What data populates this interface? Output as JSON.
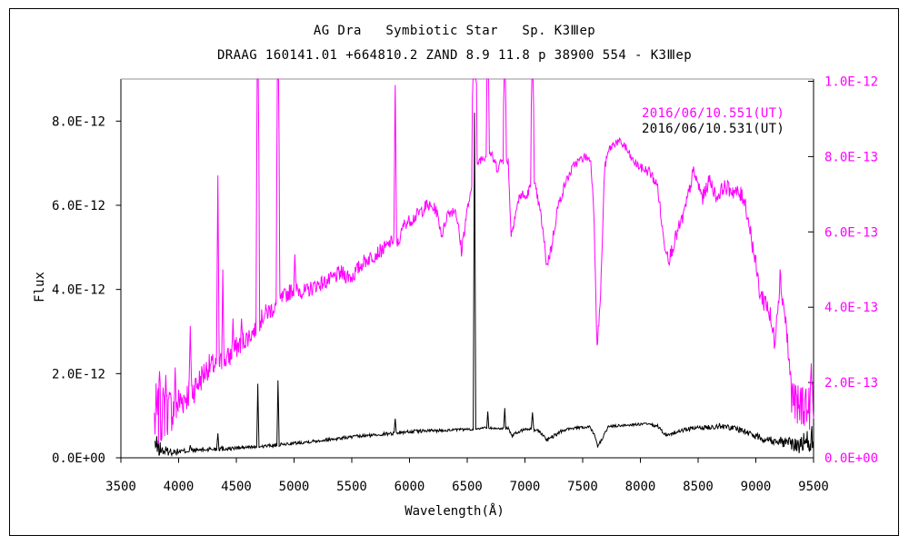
{
  "figure": {
    "title_line1": "AG Dra   Symbiotic Star   Sp. K3Ⅲep",
    "title_line2": "DRAAG 160141.01 +664810.2 ZAND 8.9 11.8 p 38900 554 - K3Ⅲep"
  },
  "chart_data": {
    "type": "line",
    "title": "AG Dra Symbiotic Star Sp. K3IIIep",
    "subtitle": "DRAAG 160141.01 +664810.2 ZAND 8.9 11.8 p 38900 554 - K3IIIep",
    "xlabel": "Wavelength(Å)",
    "ylabel_left": "Flux",
    "grid": false,
    "legend_position": "upper right inside",
    "x_axis": {
      "min": 3500,
      "max": 9500,
      "tick_values": [
        3500,
        4000,
        4500,
        5000,
        5500,
        6000,
        6500,
        7000,
        7500,
        8000,
        8500,
        9000,
        9500
      ],
      "tick_labels": [
        "3500",
        "4000",
        "4500",
        "5000",
        "5500",
        "6000",
        "6500",
        "7000",
        "7500",
        "8000",
        "8500",
        "9000",
        "9500"
      ]
    },
    "left_axis": {
      "color": "#000000",
      "tick_values": [
        0,
        2e-12,
        4e-12,
        6e-12,
        8e-12
      ],
      "tick_labels": [
        "0.0E+00",
        "2.0E-12",
        "4.0E-12",
        "6.0E-12",
        "8.0E-12"
      ],
      "max_plotted": 9e-12
    },
    "right_axis": {
      "color": "#ff00ff",
      "tick_values": [
        0,
        2e-13,
        4e-13,
        6e-13,
        8e-13,
        1e-12
      ],
      "tick_labels": [
        "0.0E+00",
        "2.0E-13",
        "4.0E-13",
        "6.0E-13",
        "8.0E-13",
        "1.0E-12"
      ],
      "max_plotted": 1.007e-12
    },
    "legend": [
      {
        "label": "2016/06/10.551(UT)",
        "color": "#ff00ff"
      },
      {
        "label": "2016/06/10.531(UT)",
        "color": "#000000"
      }
    ],
    "series": [
      {
        "name": "2016/06/10.531(UT)",
        "axis": "left",
        "color": "#000000",
        "unit": 1e-12,
        "seed": 13,
        "continuum": [
          [
            3795,
            0.3,
            0.28
          ],
          [
            3860,
            0.17,
            0.14
          ],
          [
            3950,
            0.14,
            0.08
          ],
          [
            4050,
            0.16,
            0.06
          ],
          [
            4150,
            0.18,
            0.06
          ],
          [
            4250,
            0.2,
            0.06
          ],
          [
            4350,
            0.22,
            0.07
          ],
          [
            4450,
            0.22,
            0.05
          ],
          [
            4550,
            0.24,
            0.04
          ],
          [
            4650,
            0.26,
            0.04
          ],
          [
            4750,
            0.28,
            0.04
          ],
          [
            4850,
            0.3,
            0.04
          ],
          [
            4950,
            0.33,
            0.04
          ],
          [
            5050,
            0.36,
            0.04
          ],
          [
            5150,
            0.39,
            0.04
          ],
          [
            5250,
            0.42,
            0.04
          ],
          [
            5350,
            0.45,
            0.04
          ],
          [
            5450,
            0.48,
            0.04
          ],
          [
            5550,
            0.51,
            0.04
          ],
          [
            5650,
            0.53,
            0.04
          ],
          [
            5750,
            0.56,
            0.04
          ],
          [
            5850,
            0.58,
            0.04
          ],
          [
            5950,
            0.61,
            0.04
          ],
          [
            6050,
            0.63,
            0.04
          ],
          [
            6150,
            0.64,
            0.04
          ],
          [
            6250,
            0.65,
            0.04
          ],
          [
            6350,
            0.66,
            0.03
          ],
          [
            6450,
            0.67,
            0.03
          ],
          [
            6550,
            0.68,
            0.03
          ],
          [
            6620,
            0.71,
            0.03
          ],
          [
            6700,
            0.71,
            0.03
          ],
          [
            6760,
            0.69,
            0.03
          ],
          [
            6855,
            0.71,
            0.03
          ],
          [
            6890,
            0.51,
            0.04
          ],
          [
            6930,
            0.6,
            0.04
          ],
          [
            7000,
            0.68,
            0.03
          ],
          [
            7060,
            0.68,
            0.03
          ],
          [
            7120,
            0.64,
            0.04
          ],
          [
            7190,
            0.43,
            0.04
          ],
          [
            7250,
            0.51,
            0.05
          ],
          [
            7320,
            0.64,
            0.04
          ],
          [
            7400,
            0.7,
            0.03
          ],
          [
            7500,
            0.72,
            0.03
          ],
          [
            7560,
            0.73,
            0.03
          ],
          [
            7600,
            0.55,
            0.04
          ],
          [
            7630,
            0.28,
            0.04
          ],
          [
            7670,
            0.45,
            0.04
          ],
          [
            7720,
            0.74,
            0.03
          ],
          [
            7850,
            0.77,
            0.03
          ],
          [
            7950,
            0.79,
            0.03
          ],
          [
            8050,
            0.8,
            0.04
          ],
          [
            8150,
            0.75,
            0.04
          ],
          [
            8220,
            0.54,
            0.04
          ],
          [
            8300,
            0.59,
            0.04
          ],
          [
            8400,
            0.68,
            0.05
          ],
          [
            8500,
            0.71,
            0.05
          ],
          [
            8600,
            0.73,
            0.06
          ],
          [
            8700,
            0.76,
            0.07
          ],
          [
            8800,
            0.71,
            0.07
          ],
          [
            8900,
            0.64,
            0.07
          ],
          [
            9000,
            0.51,
            0.08
          ],
          [
            9100,
            0.44,
            0.1
          ],
          [
            9200,
            0.4,
            0.12
          ],
          [
            9300,
            0.34,
            0.15
          ],
          [
            9380,
            0.3,
            0.2
          ],
          [
            9440,
            0.38,
            0.3
          ],
          [
            9480,
            0.5,
            0.4
          ],
          [
            9500,
            0.3,
            0.3
          ]
        ],
        "lines": [
          [
            4101,
            0.3,
            10
          ],
          [
            4340,
            0.58,
            10
          ],
          [
            4686,
            1.76,
            10
          ],
          [
            4861,
            1.84,
            10
          ],
          [
            5876,
            0.93,
            10
          ],
          [
            6563,
            8.2,
            11
          ],
          [
            6678,
            1.1,
            9
          ],
          [
            6825,
            1.18,
            9
          ],
          [
            7065,
            1.08,
            11
          ]
        ]
      },
      {
        "name": "2016/06/10.551(UT)",
        "axis": "right",
        "color": "#ff00ff",
        "unit": 1e-13,
        "seed": 7,
        "continuum": [
          [
            3790,
            1.0,
            1.0
          ],
          [
            3850,
            1.2,
            0.8
          ],
          [
            3950,
            1.3,
            0.6
          ],
          [
            4050,
            1.6,
            0.45
          ],
          [
            4150,
            1.9,
            0.4
          ],
          [
            4250,
            2.4,
            0.35
          ],
          [
            4350,
            2.5,
            0.3
          ],
          [
            4450,
            2.7,
            0.3
          ],
          [
            4520,
            3.0,
            0.3
          ],
          [
            4600,
            3.2,
            0.25
          ],
          [
            4660,
            3.4,
            0.25
          ],
          [
            4740,
            3.8,
            0.25
          ],
          [
            4830,
            4.0,
            0.25
          ],
          [
            4920,
            4.3,
            0.22
          ],
          [
            5000,
            4.5,
            0.22
          ],
          [
            5100,
            4.4,
            0.22
          ],
          [
            5200,
            4.6,
            0.2
          ],
          [
            5300,
            4.7,
            0.2
          ],
          [
            5400,
            4.9,
            0.22
          ],
          [
            5500,
            4.8,
            0.22
          ],
          [
            5600,
            5.2,
            0.2
          ],
          [
            5700,
            5.4,
            0.2
          ],
          [
            5800,
            5.6,
            0.18
          ],
          [
            5860,
            5.8,
            0.15
          ],
          [
            5905,
            5.7,
            0.15
          ],
          [
            5950,
            6.2,
            0.15
          ],
          [
            6050,
            6.4,
            0.18
          ],
          [
            6150,
            6.7,
            0.18
          ],
          [
            6230,
            6.6,
            0.15
          ],
          [
            6280,
            5.9,
            0.12
          ],
          [
            6330,
            6.5,
            0.15
          ],
          [
            6400,
            6.6,
            0.15
          ],
          [
            6450,
            5.5,
            0.2
          ],
          [
            6500,
            6.6,
            0.15
          ],
          [
            6530,
            7.0,
            0.1
          ],
          [
            6600,
            7.9,
            0.12
          ],
          [
            6650,
            8.0,
            0.12
          ],
          [
            6700,
            8.1,
            0.12
          ],
          [
            6760,
            7.7,
            0.15
          ],
          [
            6800,
            7.9,
            0.12
          ],
          [
            6855,
            7.9,
            0.1
          ],
          [
            6880,
            5.9,
            0.15
          ],
          [
            6910,
            6.4,
            0.15
          ],
          [
            6960,
            7.0,
            0.18
          ],
          [
            7010,
            6.9,
            0.15
          ],
          [
            7045,
            7.2,
            0.1
          ],
          [
            7090,
            7.2,
            0.12
          ],
          [
            7140,
            6.4,
            0.15
          ],
          [
            7190,
            5.1,
            0.15
          ],
          [
            7230,
            5.6,
            0.18
          ],
          [
            7280,
            6.6,
            0.15
          ],
          [
            7350,
            7.3,
            0.12
          ],
          [
            7430,
            7.8,
            0.12
          ],
          [
            7520,
            8.0,
            0.12
          ],
          [
            7570,
            7.9,
            0.1
          ],
          [
            7598,
            6.5,
            0.1
          ],
          [
            7625,
            2.9,
            0.15
          ],
          [
            7655,
            4.3,
            0.15
          ],
          [
            7690,
            7.7,
            0.12
          ],
          [
            7730,
            8.2,
            0.12
          ],
          [
            7790,
            8.4,
            0.12
          ],
          [
            7860,
            8.3,
            0.15
          ],
          [
            7930,
            7.9,
            0.12
          ],
          [
            8000,
            7.7,
            0.12
          ],
          [
            8080,
            7.6,
            0.15
          ],
          [
            8150,
            7.2,
            0.15
          ],
          [
            8200,
            5.8,
            0.2
          ],
          [
            8250,
            5.3,
            0.2
          ],
          [
            8300,
            5.8,
            0.2
          ],
          [
            8380,
            6.5,
            0.2
          ],
          [
            8460,
            7.6,
            0.18
          ],
          [
            8540,
            6.9,
            0.2
          ],
          [
            8600,
            7.4,
            0.18
          ],
          [
            8660,
            6.9,
            0.18
          ],
          [
            8720,
            7.2,
            0.2
          ],
          [
            8800,
            7.1,
            0.22
          ],
          [
            8900,
            6.9,
            0.25
          ],
          [
            8960,
            5.9,
            0.25
          ],
          [
            9040,
            4.3,
            0.3
          ],
          [
            9100,
            4.1,
            0.35
          ],
          [
            9160,
            3.1,
            0.35
          ],
          [
            9210,
            4.8,
            0.35
          ],
          [
            9260,
            3.6,
            0.35
          ],
          [
            9310,
            1.7,
            0.5
          ],
          [
            9360,
            1.3,
            0.6
          ],
          [
            9420,
            1.5,
            0.7
          ],
          [
            9460,
            1.2,
            0.7
          ],
          [
            9485,
            2.2,
            0.5
          ],
          [
            9500,
            0.9,
            0.3
          ]
        ],
        "lines": [
          [
            3835,
            2.3,
            10
          ],
          [
            3889,
            2.2,
            10
          ],
          [
            3970,
            2.4,
            10
          ],
          [
            4101,
            3.5,
            12
          ],
          [
            4340,
            7.5,
            12
          ],
          [
            4383,
            5.0,
            10
          ],
          [
            4471,
            3.7,
            10
          ],
          [
            4545,
            3.7,
            10
          ],
          [
            4686,
            14,
            16
          ],
          [
            4861,
            14,
            16
          ],
          [
            5007,
            5.4,
            10
          ],
          [
            5876,
            9.9,
            12
          ],
          [
            6563,
            16,
            24
          ],
          [
            6678,
            13,
            14
          ],
          [
            6825,
            13,
            14
          ],
          [
            7065,
            13,
            16
          ]
        ]
      }
    ]
  }
}
